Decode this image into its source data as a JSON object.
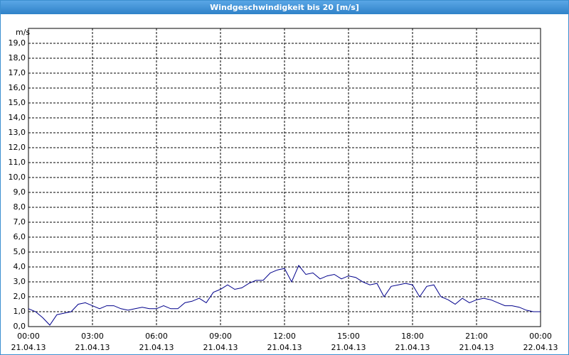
{
  "chart_data": {
    "type": "line",
    "title": "Windgeschwindigkeit bis 20 [m/s]",
    "ylabel": "m/s",
    "color": "#00008b",
    "grid": true,
    "xlim": [
      "2013-04-21T00:00",
      "2013-04-22T00:00"
    ],
    "xticks": [
      {
        "value": "2013-04-21T00:00",
        "label": "00:00\n21.04.13"
      },
      {
        "value": "2013-04-21T03:00",
        "label": "03:00\n21.04.13"
      },
      {
        "value": "2013-04-21T06:00",
        "label": "06:00\n21.04.13"
      },
      {
        "value": "2013-04-21T09:00",
        "label": "09:00\n21.04.13"
      },
      {
        "value": "2013-04-21T12:00",
        "label": "12:00\n21.04.13"
      },
      {
        "value": "2013-04-21T15:00",
        "label": "15:00\n21.04.13"
      },
      {
        "value": "2013-04-21T18:00",
        "label": "18:00\n21.04.13"
      },
      {
        "value": "2013-04-21T21:00",
        "label": "21:00\n21.04.13"
      },
      {
        "value": "2013-04-22T00:00",
        "label": "00:00\n22.04.13"
      }
    ],
    "ylim": [
      0,
      20
    ],
    "yticks": [
      {
        "value": 0,
        "label": "0,0"
      },
      {
        "value": 1,
        "label": "1,0"
      },
      {
        "value": 2,
        "label": "2,0"
      },
      {
        "value": 3,
        "label": "3,0"
      },
      {
        "value": 4,
        "label": "4,0"
      },
      {
        "value": 5,
        "label": "5,0"
      },
      {
        "value": 6,
        "label": "6,0"
      },
      {
        "value": 7,
        "label": "7,0"
      },
      {
        "value": 8,
        "label": "8,0"
      },
      {
        "value": 9,
        "label": "9,0"
      },
      {
        "value": 10,
        "label": "10,0"
      },
      {
        "value": 11,
        "label": "11,0"
      },
      {
        "value": 12,
        "label": "12,0"
      },
      {
        "value": 13,
        "label": "13,0"
      },
      {
        "value": 14,
        "label": "14,0"
      },
      {
        "value": 15,
        "label": "15,0"
      },
      {
        "value": 16,
        "label": "16,0"
      },
      {
        "value": 17,
        "label": "17,0"
      },
      {
        "value": 18,
        "label": "18,0"
      },
      {
        "value": 19,
        "label": "19,0"
      }
    ],
    "x": [
      "2013-04-21T00:00",
      "2013-04-21T00:20",
      "2013-04-21T00:40",
      "2013-04-21T01:00",
      "2013-04-21T01:20",
      "2013-04-21T01:40",
      "2013-04-21T02:00",
      "2013-04-21T02:20",
      "2013-04-21T02:40",
      "2013-04-21T03:00",
      "2013-04-21T03:20",
      "2013-04-21T03:40",
      "2013-04-21T04:00",
      "2013-04-21T04:20",
      "2013-04-21T04:40",
      "2013-04-21T05:00",
      "2013-04-21T05:20",
      "2013-04-21T05:40",
      "2013-04-21T06:00",
      "2013-04-21T06:20",
      "2013-04-21T06:40",
      "2013-04-21T07:00",
      "2013-04-21T07:20",
      "2013-04-21T07:40",
      "2013-04-21T08:00",
      "2013-04-21T08:20",
      "2013-04-21T08:40",
      "2013-04-21T09:00",
      "2013-04-21T09:20",
      "2013-04-21T09:40",
      "2013-04-21T10:00",
      "2013-04-21T10:20",
      "2013-04-21T10:40",
      "2013-04-21T11:00",
      "2013-04-21T11:20",
      "2013-04-21T11:40",
      "2013-04-21T12:00",
      "2013-04-21T12:20",
      "2013-04-21T12:40",
      "2013-04-21T13:00",
      "2013-04-21T13:20",
      "2013-04-21T13:40",
      "2013-04-21T14:00",
      "2013-04-21T14:20",
      "2013-04-21T14:40",
      "2013-04-21T15:00",
      "2013-04-21T15:20",
      "2013-04-21T15:40",
      "2013-04-21T16:00",
      "2013-04-21T16:20",
      "2013-04-21T16:40",
      "2013-04-21T17:00",
      "2013-04-21T17:20",
      "2013-04-21T17:40",
      "2013-04-21T18:00",
      "2013-04-21T18:20",
      "2013-04-21T18:40",
      "2013-04-21T19:00",
      "2013-04-21T19:20",
      "2013-04-21T19:40",
      "2013-04-21T20:00",
      "2013-04-21T20:20",
      "2013-04-21T20:40",
      "2013-04-21T21:00",
      "2013-04-21T21:20",
      "2013-04-21T21:40",
      "2013-04-21T22:00",
      "2013-04-21T22:20",
      "2013-04-21T22:40",
      "2013-04-21T23:00",
      "2013-04-21T23:20",
      "2013-04-21T23:40",
      "2013-04-22T00:00"
    ],
    "values": [
      1.2,
      1.0,
      0.6,
      0.1,
      0.8,
      0.9,
      1.0,
      1.5,
      1.6,
      1.4,
      1.2,
      1.4,
      1.4,
      1.2,
      1.1,
      1.2,
      1.3,
      1.2,
      1.2,
      1.4,
      1.2,
      1.2,
      1.6,
      1.7,
      1.9,
      1.6,
      2.3,
      2.5,
      2.8,
      2.5,
      2.6,
      2.9,
      3.1,
      3.1,
      3.6,
      3.8,
      3.9,
      3.0,
      4.1,
      3.5,
      3.6,
      3.2,
      3.4,
      3.5,
      3.2,
      3.4,
      3.3,
      3.0,
      2.8,
      2.9,
      2.0,
      2.7,
      2.8,
      2.9,
      2.8,
      2.0,
      2.7,
      2.8,
      2.0,
      1.8,
      1.5,
      1.9,
      1.6,
      1.8,
      1.9,
      1.8,
      1.6,
      1.4,
      1.4,
      1.3,
      1.1,
      1.0,
      1.0
    ]
  }
}
